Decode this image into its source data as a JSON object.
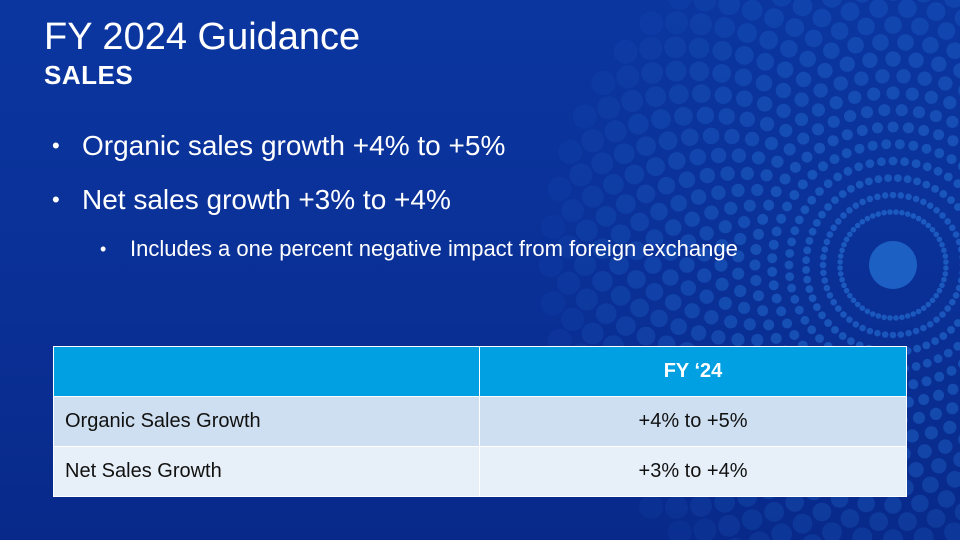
{
  "slide": {
    "title": "FY 2024 Guidance",
    "subtitle": "SALES",
    "bullets": [
      "Organic sales growth +4% to +5%",
      "Net sales growth +3% to +4%"
    ],
    "sub_bullet": "Includes a one percent negative impact from foreign exchange",
    "bullet_glyph": "•"
  },
  "table": {
    "header": [
      "",
      "FY ‘24"
    ],
    "rows": [
      [
        "Organic Sales Growth",
        "+4% to +5%"
      ],
      [
        "Net Sales Growth",
        "+3% to +4%"
      ]
    ]
  },
  "colors": {
    "background": "#0a3096",
    "table_header": "#00a0e3",
    "row_odd": "#cddff0",
    "row_even": "#e7f0f9",
    "burst_dots": "#2e86ea"
  }
}
